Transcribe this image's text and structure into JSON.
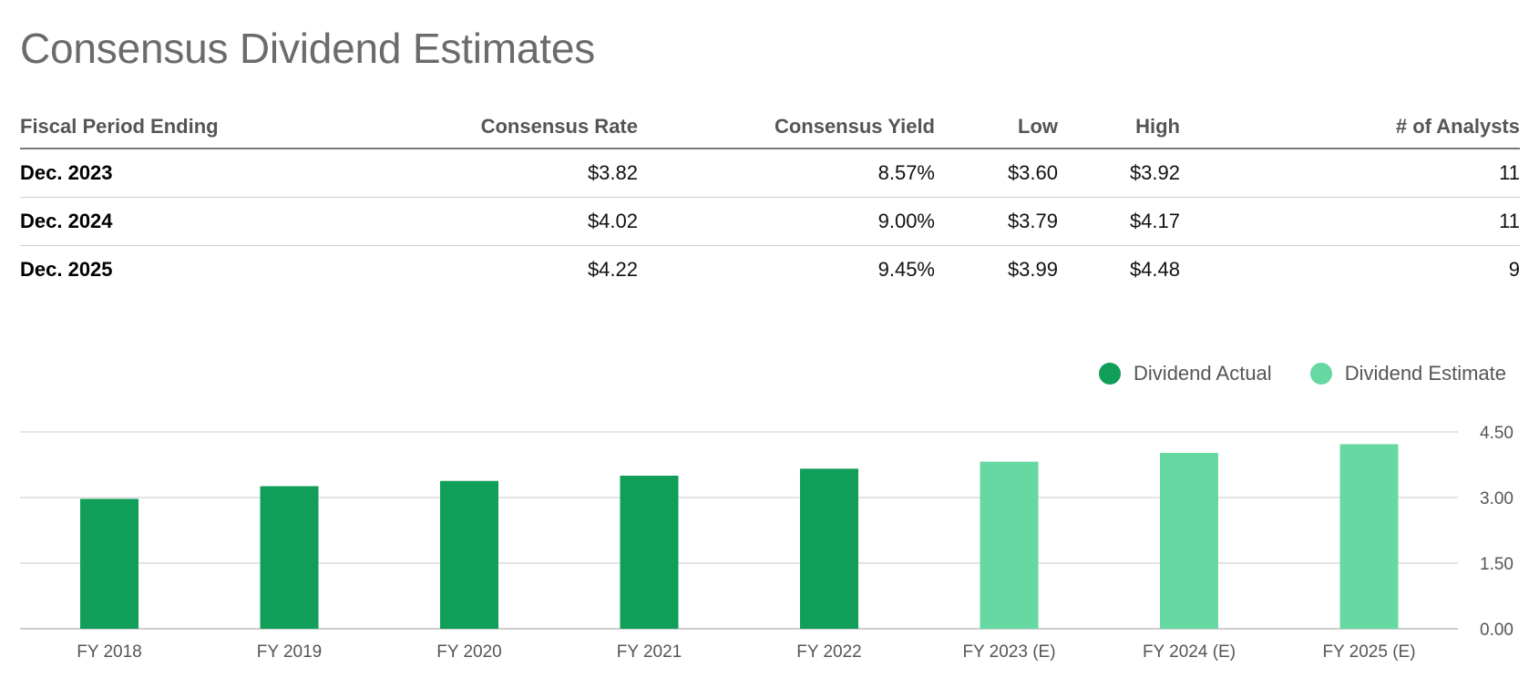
{
  "title": "Consensus Dividend Estimates",
  "table": {
    "headers": [
      "Fiscal Period Ending",
      "Consensus Rate",
      "Consensus Yield",
      "Low",
      "High",
      "# of Analysts"
    ],
    "rows": [
      [
        "Dec. 2023",
        "$3.82",
        "8.57%",
        "$3.60",
        "$3.92",
        "11"
      ],
      [
        "Dec. 2024",
        "$4.02",
        "9.00%",
        "$3.79",
        "$4.17",
        "11"
      ],
      [
        "Dec. 2025",
        "$4.22",
        "9.45%",
        "$3.99",
        "$4.48",
        "9"
      ]
    ]
  },
  "legend": {
    "actual": "Dividend Actual",
    "estimate": "Dividend Estimate"
  },
  "colors": {
    "actual": "#119E59",
    "estimate": "#66D9A2",
    "grid": "#d4d4d4",
    "axis_text": "#555555"
  },
  "chart_data": {
    "type": "bar",
    "categories": [
      "FY 2018",
      "FY 2019",
      "FY 2020",
      "FY 2021",
      "FY 2022",
      "FY 2023 (E)",
      "FY 2024 (E)",
      "FY 2025 (E)"
    ],
    "series": [
      {
        "name": "Dividend Actual",
        "values": [
          2.97,
          3.26,
          3.38,
          3.5,
          3.66,
          null,
          null,
          null
        ]
      },
      {
        "name": "Dividend Estimate",
        "values": [
          null,
          null,
          null,
          null,
          null,
          3.82,
          4.02,
          4.22
        ]
      }
    ],
    "yticks": [
      "0.00",
      "1.50",
      "3.00",
      "4.50"
    ],
    "ylim": [
      0,
      4.5
    ],
    "grid": true,
    "legend_position": "top-right",
    "title": "",
    "xlabel": "",
    "ylabel": ""
  }
}
